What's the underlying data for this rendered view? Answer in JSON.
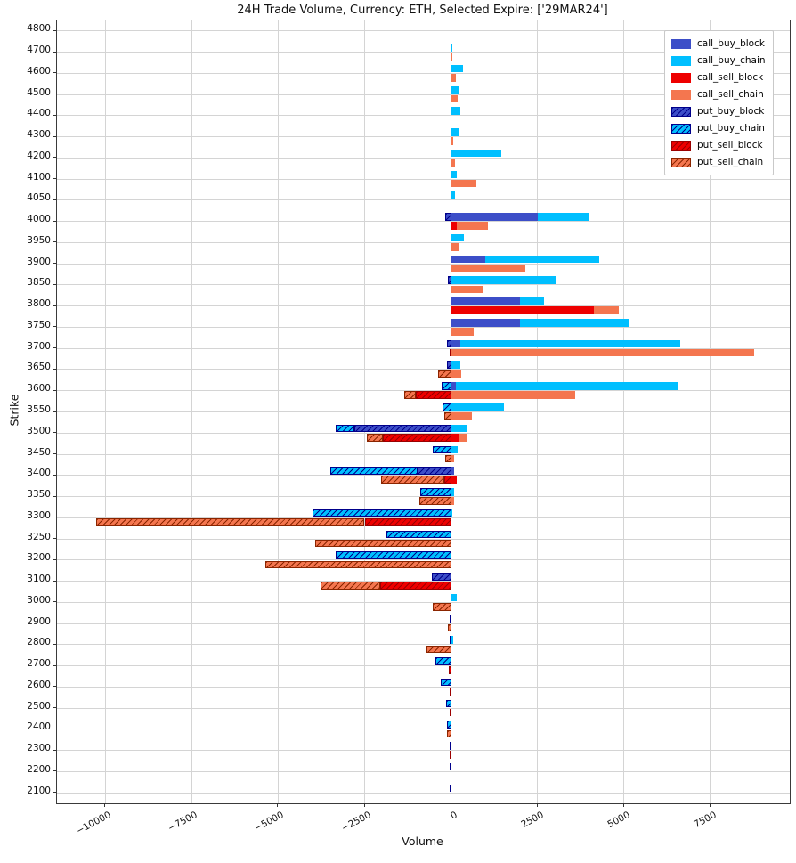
{
  "chart_data": {
    "type": "bar",
    "orientation": "horizontal",
    "title": "24H Trade Volume, Currency: ETH, Selected Expire: ['29MAR24']",
    "xlabel": "Volume",
    "ylabel": "Strike",
    "xlim": [
      -11400,
      9800
    ],
    "x_ticks": [
      -10000,
      -7500,
      -5000,
      -2500,
      0,
      2500,
      5000,
      7500
    ],
    "grid": true,
    "legend_position": "upper-right",
    "series_meta": [
      {
        "key": "call_buy_block",
        "label": "call_buy_block",
        "color": "#3c4ec8",
        "hatched": false,
        "hatch_color": "",
        "side": "positive",
        "row": "buy"
      },
      {
        "key": "call_buy_chain",
        "label": "call_buy_chain",
        "color": "#00bfff",
        "hatched": false,
        "hatch_color": "",
        "side": "positive",
        "row": "buy"
      },
      {
        "key": "call_sell_block",
        "label": "call_sell_block",
        "color": "#ee0000",
        "hatched": false,
        "hatch_color": "",
        "side": "positive",
        "row": "sell"
      },
      {
        "key": "call_sell_chain",
        "label": "call_sell_chain",
        "color": "#f4764f",
        "hatched": false,
        "hatch_color": "",
        "side": "positive",
        "row": "sell"
      },
      {
        "key": "put_buy_block",
        "label": "put_buy_block",
        "color": "#3c4ec8",
        "hatched": true,
        "hatch_color": "#00008b",
        "side": "negative",
        "row": "buy"
      },
      {
        "key": "put_buy_chain",
        "label": "put_buy_chain",
        "color": "#00bfff",
        "hatched": true,
        "hatch_color": "#00008b",
        "side": "negative",
        "row": "buy"
      },
      {
        "key": "put_sell_block",
        "label": "put_sell_block",
        "color": "#ee0000",
        "hatched": true,
        "hatch_color": "#9b0000",
        "side": "negative",
        "row": "sell"
      },
      {
        "key": "put_sell_chain",
        "label": "put_sell_chain",
        "color": "#f4764f",
        "hatched": true,
        "hatch_color": "#8b2500",
        "side": "negative",
        "row": "sell"
      }
    ],
    "rows": [
      {
        "strike": "4800",
        "call_buy_block": 0,
        "call_buy_chain": 0,
        "call_sell_block": 0,
        "call_sell_chain": 0,
        "put_buy_block": 0,
        "put_buy_chain": 0,
        "put_sell_block": 0,
        "put_sell_chain": 0
      },
      {
        "strike": "4700",
        "call_buy_block": 0,
        "call_buy_chain": 50,
        "call_sell_block": 0,
        "call_sell_chain": 30,
        "put_buy_block": 0,
        "put_buy_chain": 0,
        "put_sell_block": 0,
        "put_sell_chain": 0
      },
      {
        "strike": "4600",
        "call_buy_block": 0,
        "call_buy_chain": 350,
        "call_sell_block": 0,
        "call_sell_chain": 130,
        "put_buy_block": 0,
        "put_buy_chain": 0,
        "put_sell_block": 0,
        "put_sell_chain": 0
      },
      {
        "strike": "4500",
        "call_buy_block": 0,
        "call_buy_chain": 230,
        "call_sell_block": 0,
        "call_sell_chain": 190,
        "put_buy_block": 0,
        "put_buy_chain": 0,
        "put_sell_block": 0,
        "put_sell_chain": 0
      },
      {
        "strike": "4400",
        "call_buy_block": 0,
        "call_buy_chain": 260,
        "call_sell_block": 0,
        "call_sell_chain": 0,
        "put_buy_block": 0,
        "put_buy_chain": 0,
        "put_sell_block": 0,
        "put_sell_chain": 0
      },
      {
        "strike": "4300",
        "call_buy_block": 0,
        "call_buy_chain": 215,
        "call_sell_block": 0,
        "call_sell_chain": 60,
        "put_buy_block": 0,
        "put_buy_chain": 0,
        "put_sell_block": 0,
        "put_sell_chain": 0
      },
      {
        "strike": "4200",
        "call_buy_block": 0,
        "call_buy_chain": 1450,
        "call_sell_block": 0,
        "call_sell_chain": 120,
        "put_buy_block": 0,
        "put_buy_chain": 0,
        "put_sell_block": 0,
        "put_sell_chain": 0
      },
      {
        "strike": "4100",
        "call_buy_block": 0,
        "call_buy_chain": 170,
        "call_sell_block": 0,
        "call_sell_chain": 725,
        "put_buy_block": 0,
        "put_buy_chain": 0,
        "put_sell_block": 0,
        "put_sell_chain": 0
      },
      {
        "strike": "4050",
        "call_buy_block": 0,
        "call_buy_chain": 120,
        "call_sell_block": 0,
        "call_sell_chain": 0,
        "put_buy_block": 0,
        "put_buy_chain": 0,
        "put_sell_block": 0,
        "put_sell_chain": 0
      },
      {
        "strike": "4000",
        "call_buy_block": 2500,
        "call_buy_chain": 1500,
        "call_sell_block": 170,
        "call_sell_chain": 900,
        "put_buy_block": 180,
        "put_buy_chain": 0,
        "put_sell_block": 0,
        "put_sell_chain": 0
      },
      {
        "strike": "3950",
        "call_buy_block": 0,
        "call_buy_chain": 360,
        "call_sell_block": 0,
        "call_sell_chain": 210,
        "put_buy_block": 0,
        "put_buy_chain": 0,
        "put_sell_block": 0,
        "put_sell_chain": 0
      },
      {
        "strike": "3900",
        "call_buy_block": 1000,
        "call_buy_chain": 3300,
        "call_sell_block": 0,
        "call_sell_chain": 2150,
        "put_buy_block": 0,
        "put_buy_chain": 0,
        "put_sell_block": 0,
        "put_sell_chain": 0
      },
      {
        "strike": "3850",
        "call_buy_block": 0,
        "call_buy_chain": 3050,
        "call_sell_block": 0,
        "call_sell_chain": 940,
        "put_buy_block": 90,
        "put_buy_chain": 0,
        "put_sell_block": 0,
        "put_sell_chain": 0
      },
      {
        "strike": "3800",
        "call_buy_block": 2000,
        "call_buy_chain": 700,
        "call_sell_block": 4130,
        "call_sell_chain": 720,
        "put_buy_block": 0,
        "put_buy_chain": 0,
        "put_sell_block": 0,
        "put_sell_chain": 0
      },
      {
        "strike": "3750",
        "call_buy_block": 2000,
        "call_buy_chain": 3170,
        "call_sell_block": 0,
        "call_sell_chain": 660,
        "put_buy_block": 0,
        "put_buy_chain": 0,
        "put_sell_block": 0,
        "put_sell_chain": 0
      },
      {
        "strike": "3700",
        "call_buy_block": 260,
        "call_buy_chain": 6370,
        "call_sell_block": 0,
        "call_sell_chain": 8780,
        "put_buy_block": 130,
        "put_buy_chain": 0,
        "put_sell_block": 30,
        "put_sell_chain": 0
      },
      {
        "strike": "3650",
        "call_buy_block": 0,
        "call_buy_chain": 280,
        "call_sell_block": 0,
        "call_sell_chain": 300,
        "put_buy_block": 130,
        "put_buy_chain": 0,
        "put_sell_block": 0,
        "put_sell_chain": 370
      },
      {
        "strike": "3600",
        "call_buy_block": 130,
        "call_buy_chain": 6460,
        "call_sell_block": 0,
        "call_sell_chain": 3600,
        "put_buy_block": 0,
        "put_buy_chain": 280,
        "put_sell_block": 1020,
        "put_sell_chain": 345
      },
      {
        "strike": "3550",
        "call_buy_block": 0,
        "call_buy_chain": 1530,
        "call_sell_block": 0,
        "call_sell_chain": 595,
        "put_buy_block": 0,
        "put_buy_chain": 240,
        "put_sell_block": 0,
        "put_sell_chain": 200
      },
      {
        "strike": "3500",
        "call_buy_block": 0,
        "call_buy_chain": 450,
        "call_sell_block": 215,
        "call_sell_chain": 235,
        "put_buy_block": 2790,
        "put_buy_chain": 560,
        "put_sell_block": 1970,
        "put_sell_chain": 475
      },
      {
        "strike": "3450",
        "call_buy_block": 0,
        "call_buy_chain": 190,
        "call_sell_block": 0,
        "call_sell_chain": 100,
        "put_buy_block": 0,
        "put_buy_chain": 520,
        "put_sell_block": 0,
        "put_sell_chain": 175
      },
      {
        "strike": "3400",
        "call_buy_block": 80,
        "call_buy_chain": 0,
        "call_sell_block": 165,
        "call_sell_chain": 0,
        "put_buy_block": 975,
        "put_buy_chain": 2505,
        "put_sell_block": 200,
        "put_sell_chain": 1815
      },
      {
        "strike": "3350",
        "call_buy_block": 0,
        "call_buy_chain": 80,
        "call_sell_block": 0,
        "call_sell_chain": 85,
        "put_buy_block": 0,
        "put_buy_chain": 890,
        "put_sell_block": 0,
        "put_sell_chain": 915
      },
      {
        "strike": "3300",
        "call_buy_block": 0,
        "call_buy_chain": 50,
        "call_sell_block": 0,
        "call_sell_chain": 0,
        "put_buy_block": 0,
        "put_buy_chain": 4000,
        "put_sell_block": 2500,
        "put_sell_chain": 7770
      },
      {
        "strike": "3250",
        "call_buy_block": 0,
        "call_buy_chain": 0,
        "call_sell_block": 0,
        "call_sell_chain": 0,
        "put_buy_block": 0,
        "put_buy_chain": 1880,
        "put_sell_block": 0,
        "put_sell_chain": 3940
      },
      {
        "strike": "3200",
        "call_buy_block": 0,
        "call_buy_chain": 0,
        "call_sell_block": 0,
        "call_sell_chain": 0,
        "put_buy_block": 0,
        "put_buy_chain": 3330,
        "put_sell_block": 0,
        "put_sell_chain": 5360
      },
      {
        "strike": "3100",
        "call_buy_block": 0,
        "call_buy_chain": 0,
        "call_sell_block": 0,
        "call_sell_chain": 0,
        "put_buy_block": 545,
        "put_buy_chain": 0,
        "put_sell_block": 2050,
        "put_sell_chain": 1730
      },
      {
        "strike": "3000",
        "call_buy_block": 0,
        "call_buy_chain": 170,
        "call_sell_block": 0,
        "call_sell_chain": 0,
        "put_buy_block": 0,
        "put_buy_chain": 0,
        "put_sell_block": 0,
        "put_sell_chain": 520
      },
      {
        "strike": "2900",
        "call_buy_block": 0,
        "call_buy_chain": 0,
        "call_sell_block": 0,
        "call_sell_chain": 0,
        "put_buy_block": 50,
        "put_buy_chain": 0,
        "put_sell_block": 0,
        "put_sell_chain": 100
      },
      {
        "strike": "2800",
        "call_buy_block": 0,
        "call_buy_chain": 60,
        "call_sell_block": 0,
        "call_sell_chain": 0,
        "put_buy_block": 0,
        "put_buy_chain": 35,
        "put_sell_block": 0,
        "put_sell_chain": 715
      },
      {
        "strike": "2700",
        "call_buy_block": 0,
        "call_buy_chain": 0,
        "call_sell_block": 0,
        "call_sell_chain": 0,
        "put_buy_block": 0,
        "put_buy_chain": 460,
        "put_sell_block": 70,
        "put_sell_chain": 0
      },
      {
        "strike": "2600",
        "call_buy_block": 0,
        "call_buy_chain": 0,
        "call_sell_block": 0,
        "call_sell_chain": 0,
        "put_buy_block": 0,
        "put_buy_chain": 285,
        "put_sell_block": 30,
        "put_sell_chain": 0
      },
      {
        "strike": "2500",
        "call_buy_block": 0,
        "call_buy_chain": 0,
        "call_sell_block": 0,
        "call_sell_chain": 0,
        "put_buy_block": 0,
        "put_buy_chain": 140,
        "put_sell_block": 50,
        "put_sell_chain": 0
      },
      {
        "strike": "2400",
        "call_buy_block": 0,
        "call_buy_chain": 0,
        "call_sell_block": 0,
        "call_sell_chain": 0,
        "put_buy_block": 0,
        "put_buy_chain": 110,
        "put_sell_block": 0,
        "put_sell_chain": 110
      },
      {
        "strike": "2300",
        "call_buy_block": 0,
        "call_buy_chain": 0,
        "call_sell_block": 0,
        "call_sell_chain": 0,
        "put_buy_block": 40,
        "put_buy_chain": 0,
        "put_sell_block": 40,
        "put_sell_chain": 0
      },
      {
        "strike": "2200",
        "call_buy_block": 0,
        "call_buy_chain": 0,
        "call_sell_block": 0,
        "call_sell_chain": 0,
        "put_buy_block": 40,
        "put_buy_chain": 0,
        "put_sell_block": 0,
        "put_sell_chain": 0
      },
      {
        "strike": "2100",
        "call_buy_block": 0,
        "call_buy_chain": 0,
        "call_sell_block": 0,
        "call_sell_chain": 0,
        "put_buy_block": 35,
        "put_buy_chain": 0,
        "put_sell_block": 0,
        "put_sell_chain": 0
      }
    ]
  },
  "layout_colors": {
    "grid": "#d4d4d4",
    "spine": "#3a3a3a",
    "tick": "#333333"
  }
}
